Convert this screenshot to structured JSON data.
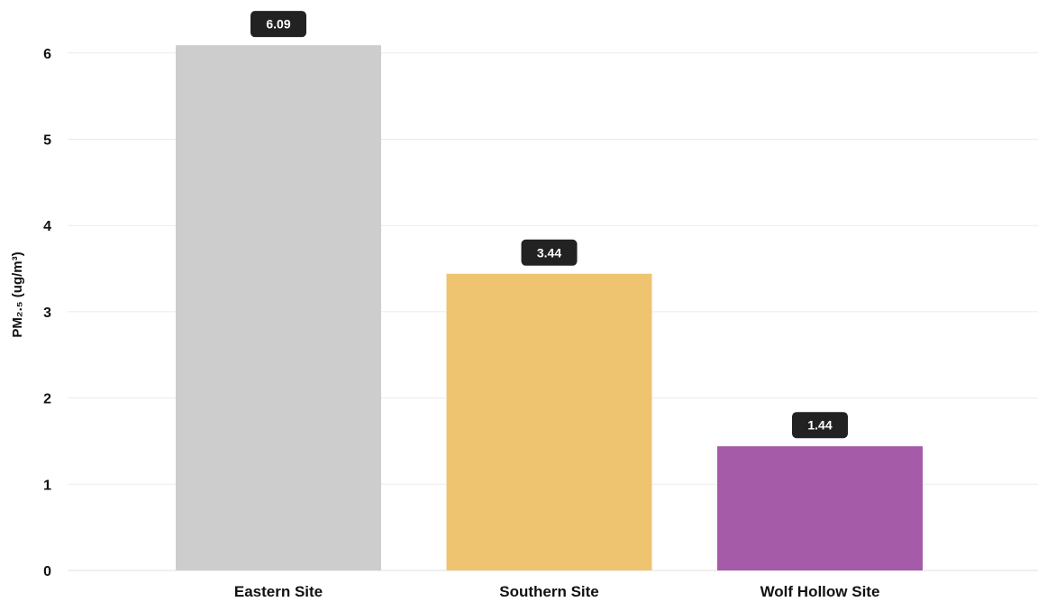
{
  "chart_data": {
    "type": "bar",
    "categories": [
      "Eastern Site",
      "Southern Site",
      "Wolf Hollow Site"
    ],
    "values": [
      6.09,
      3.44,
      1.44
    ],
    "value_labels": [
      "6.09",
      "3.44",
      "1.44"
    ],
    "colors": [
      "#cdcdcd",
      "#eec471",
      "#a55ba8"
    ],
    "title": "",
    "xlabel": "",
    "ylabel": "PM₂.₅ (ug/m³)",
    "ylim": [
      0,
      6.1
    ],
    "yticks": [
      0,
      1,
      2,
      3,
      4,
      5,
      6
    ],
    "grid": true,
    "gridline_color": "#ebebeb",
    "value_label_bg": "#222222",
    "legend": "none"
  }
}
